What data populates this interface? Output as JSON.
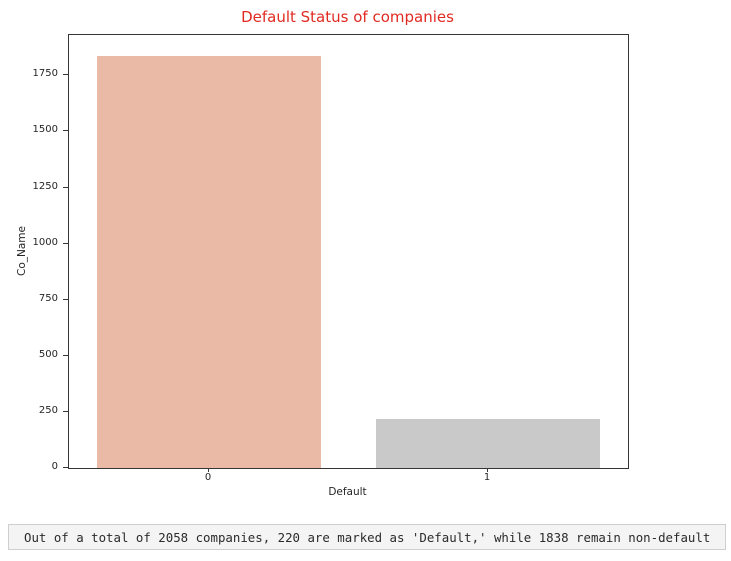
{
  "chart_data": {
    "type": "bar",
    "title": "Default Status of companies",
    "title_color": "#e12a22",
    "xlabel": "Default",
    "ylabel": "Co_Name",
    "categories": [
      "0",
      "1"
    ],
    "values": [
      1838,
      220
    ],
    "bar_colors": [
      "#ebbaa6",
      "#c9c9c9"
    ],
    "ylim": [
      0,
      1930
    ],
    "yticks": [
      0,
      250,
      500,
      750,
      1000,
      1250,
      1500,
      1750
    ],
    "grid": false,
    "legend": null,
    "bar_width_fraction": 0.8
  },
  "caption": {
    "text": "Out of a total of 2058 companies, 220 are marked as 'Default,' while 1838 remain non-default"
  }
}
